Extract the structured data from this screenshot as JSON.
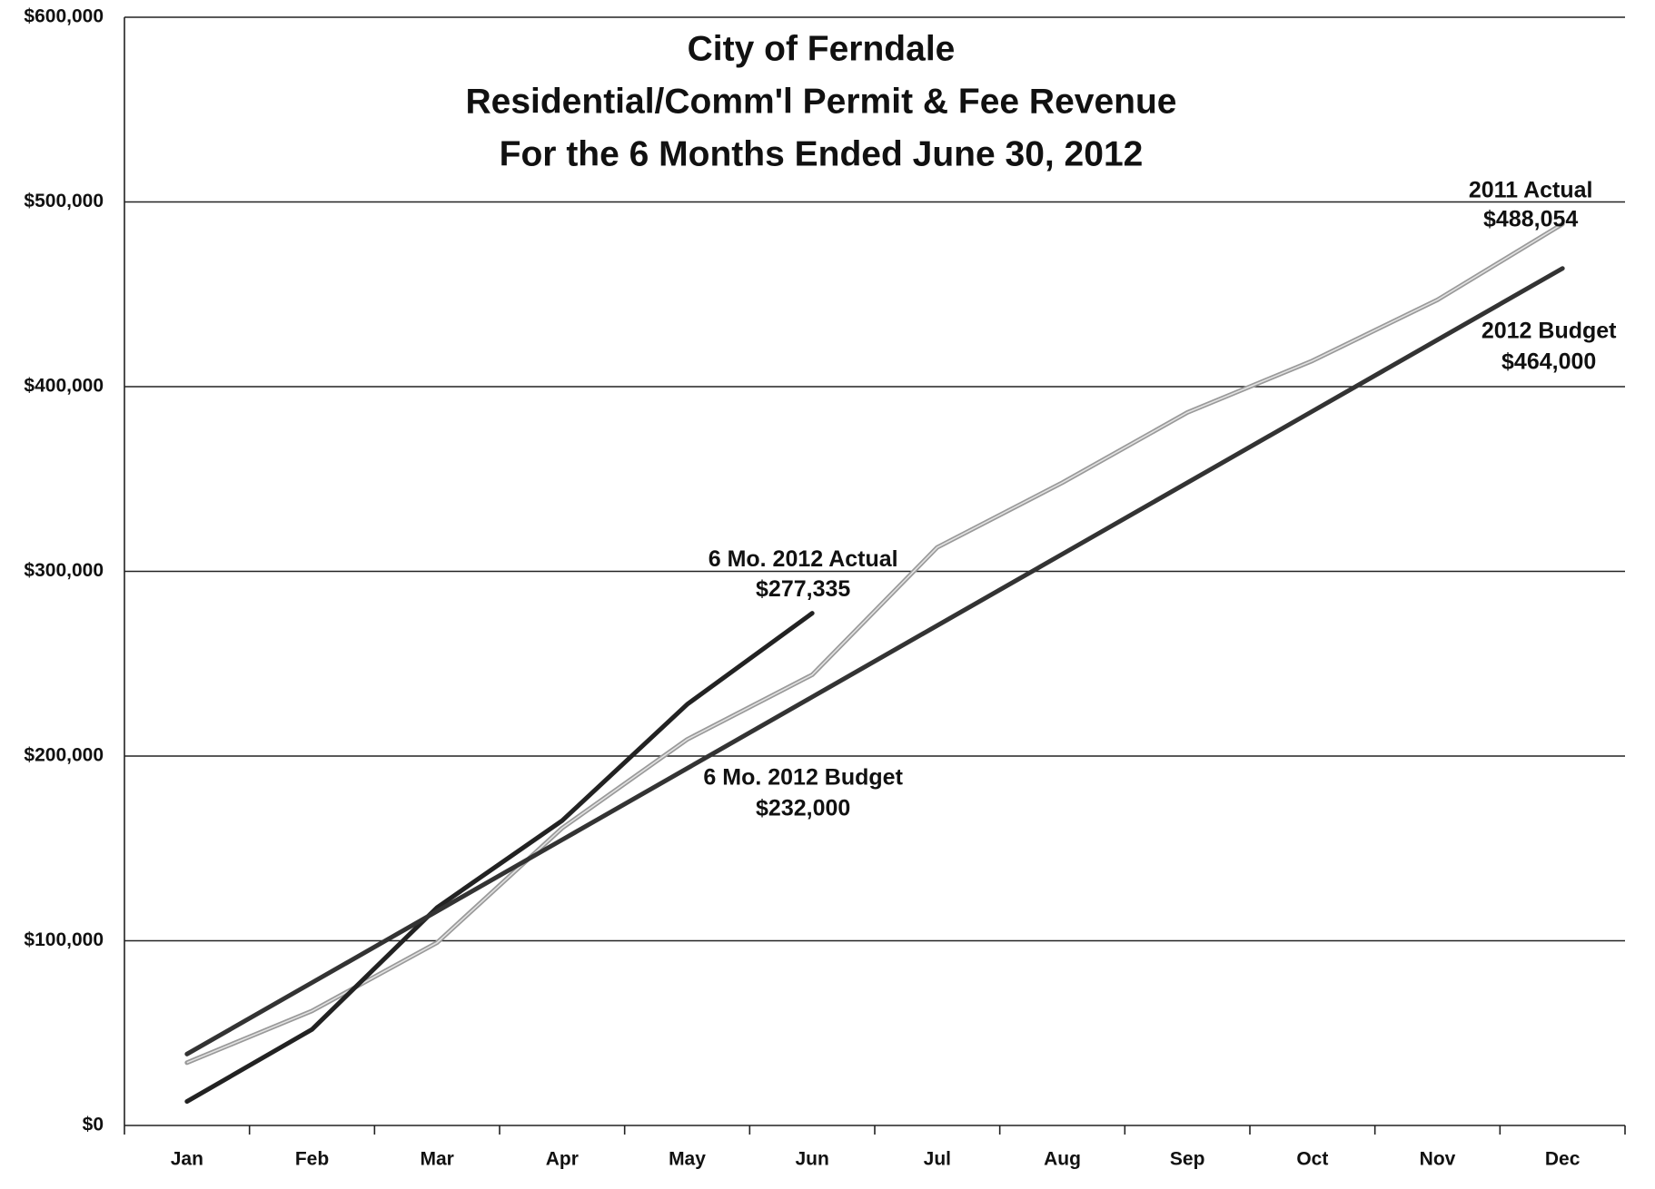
{
  "chart_data": {
    "type": "line",
    "title": [
      "City of Ferndale",
      "Residential/Comm'l Permit & Fee Revenue",
      "For the 6 Months Ended June 30, 2012"
    ],
    "categories": [
      "Jan",
      "Feb",
      "Mar",
      "Apr",
      "May",
      "Jun",
      "Jul",
      "Aug",
      "Sep",
      "Oct",
      "Nov",
      "Dec"
    ],
    "series": [
      {
        "name": "2011 Actual",
        "color": "#9a9a9a",
        "values": [
          34000,
          62000,
          99000,
          161000,
          209000,
          244000,
          313000,
          348000,
          386000,
          414000,
          447000,
          488054
        ],
        "value_labels": [
          null,
          null,
          null,
          null,
          null,
          null,
          null,
          null,
          null,
          null,
          null,
          "$488,054"
        ]
      },
      {
        "name": "6 Mo. 2012 Actual",
        "color": "#222222",
        "values": [
          13000,
          52000,
          118000,
          165000,
          228000,
          277335,
          null,
          null,
          null,
          null,
          null,
          null
        ],
        "value_labels": [
          null,
          null,
          null,
          null,
          null,
          "$277,335",
          null,
          null,
          null,
          null,
          null,
          null
        ]
      },
      {
        "name": "2012 Budget",
        "color": "#333333",
        "values": [
          38667,
          77333,
          116000,
          154667,
          193333,
          232000,
          270667,
          309333,
          348000,
          386667,
          425333,
          464000
        ],
        "value_labels": [
          null,
          null,
          null,
          null,
          null,
          "$232,000",
          null,
          null,
          null,
          null,
          null,
          "$464,000"
        ]
      }
    ],
    "annotations": [
      "6 Mo. 2012 Budget"
    ],
    "ylim": [
      0,
      600000
    ],
    "yticks": [
      {
        "value": 0,
        "label": "$0"
      },
      {
        "value": 100000,
        "label": "$100,000"
      },
      {
        "value": 200000,
        "label": "$200,000"
      },
      {
        "value": 300000,
        "label": "$300,000"
      },
      {
        "value": 400000,
        "label": "$400,000"
      },
      {
        "value": 500000,
        "label": "$500,000"
      },
      {
        "value": 600000,
        "label": "$600,000"
      }
    ],
    "grid": true
  }
}
